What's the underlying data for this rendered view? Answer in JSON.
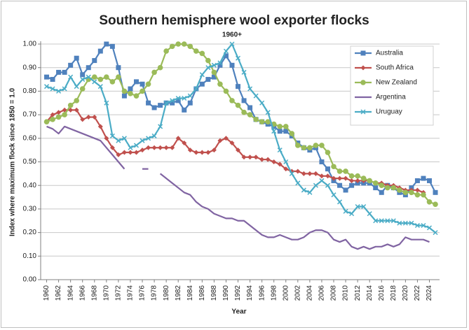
{
  "chart_data": {
    "type": "line",
    "title": "Southern hemisphere wool exporter flocks",
    "x_label": "Year",
    "y_label": "Index where maximum flock since 1850 = 1.0",
    "annotation": {
      "text": "1960+",
      "x": 1991
    },
    "x": [
      1960,
      1961,
      1962,
      1963,
      1964,
      1965,
      1966,
      1967,
      1968,
      1969,
      1970,
      1971,
      1972,
      1973,
      1974,
      1975,
      1976,
      1977,
      1978,
      1979,
      1980,
      1981,
      1982,
      1983,
      1984,
      1985,
      1986,
      1987,
      1988,
      1989,
      1990,
      1991,
      1992,
      1993,
      1994,
      1995,
      1996,
      1997,
      1998,
      1999,
      2000,
      2001,
      2002,
      2003,
      2004,
      2005,
      2006,
      2007,
      2008,
      2009,
      2010,
      2011,
      2012,
      2013,
      2014,
      2015,
      2016,
      2017,
      2018,
      2019,
      2020,
      2021,
      2022,
      2023,
      2024,
      2025
    ],
    "xlim": [
      1959,
      2025.7
    ],
    "xticks": [
      1960,
      1962,
      1964,
      1966,
      1968,
      1970,
      1972,
      1974,
      1976,
      1978,
      1980,
      1982,
      1984,
      1986,
      1988,
      1990,
      1992,
      1994,
      1996,
      1998,
      2000,
      2002,
      2004,
      2006,
      2008,
      2010,
      2012,
      2014,
      2016,
      2018,
      2020,
      2022,
      2024
    ],
    "ylim": [
      0,
      1
    ],
    "yticks": [
      {
        "value": 0,
        "label": "0.00"
      },
      {
        "value": 0.1,
        "label": "0.10"
      },
      {
        "value": 0.2,
        "label": "0.20"
      },
      {
        "value": 0.3,
        "label": "0.30"
      },
      {
        "value": 0.4,
        "label": "0.40"
      },
      {
        "value": 0.5,
        "label": "0.50"
      },
      {
        "value": 0.6,
        "label": "0.60"
      },
      {
        "value": 0.7,
        "label": "0.70"
      },
      {
        "value": 0.8,
        "label": "0.80"
      },
      {
        "value": 0.9,
        "label": "0.90"
      },
      {
        "value": 1,
        "label": "1.00"
      }
    ],
    "grid": true,
    "legend": "top-right",
    "series": [
      {
        "name": "Australia",
        "color": "#4f81bd",
        "marker": "square",
        "values": [
          0.86,
          0.85,
          0.88,
          0.88,
          0.91,
          0.94,
          0.87,
          0.9,
          0.93,
          0.97,
          1.0,
          0.99,
          0.9,
          0.78,
          0.81,
          0.84,
          0.83,
          0.75,
          0.73,
          0.74,
          0.75,
          0.75,
          0.76,
          0.72,
          0.75,
          0.81,
          0.83,
          0.85,
          0.86,
          0.91,
          0.95,
          0.91,
          0.82,
          0.76,
          0.73,
          0.68,
          0.67,
          0.66,
          0.65,
          0.63,
          0.63,
          0.61,
          0.58,
          0.56,
          0.55,
          0.56,
          0.5,
          0.47,
          0.42,
          0.4,
          0.38,
          0.4,
          0.41,
          0.41,
          0.41,
          0.39,
          0.37,
          0.4,
          0.39,
          0.37,
          0.36,
          0.39,
          0.42,
          0.43,
          0.42,
          0.37
        ]
      },
      {
        "name": "South Africa",
        "color": "#c0504d",
        "marker": "diamond",
        "values": [
          0.67,
          0.7,
          0.71,
          0.72,
          0.72,
          0.72,
          0.68,
          0.69,
          0.69,
          0.65,
          0.6,
          0.56,
          0.53,
          0.54,
          0.54,
          0.54,
          0.55,
          0.56,
          0.56,
          0.56,
          0.56,
          0.56,
          0.6,
          0.58,
          0.55,
          0.54,
          0.54,
          0.54,
          0.55,
          0.59,
          0.6,
          0.58,
          0.55,
          0.52,
          0.52,
          0.52,
          0.51,
          0.51,
          0.5,
          0.49,
          0.47,
          0.46,
          0.46,
          0.45,
          0.45,
          0.45,
          0.44,
          0.44,
          0.43,
          0.43,
          0.43,
          0.42,
          0.42,
          0.42,
          0.42,
          0.41,
          0.41,
          0.4,
          0.4,
          0.39,
          0.38,
          0.38,
          0.38,
          0.37,
          null,
          null
        ]
      },
      {
        "name": "New Zealand",
        "color": "#9bbb59",
        "marker": "circle",
        "values": [
          0.67,
          0.68,
          0.69,
          0.7,
          0.74,
          0.76,
          0.81,
          0.85,
          0.86,
          0.85,
          0.86,
          0.84,
          0.86,
          0.8,
          0.79,
          0.78,
          0.8,
          0.83,
          0.88,
          0.9,
          0.97,
          0.99,
          1.0,
          1.0,
          0.99,
          0.97,
          0.96,
          0.93,
          0.88,
          0.83,
          0.8,
          0.76,
          0.74,
          0.71,
          0.7,
          0.68,
          0.67,
          0.67,
          0.66,
          0.65,
          0.65,
          0.62,
          0.57,
          0.56,
          0.56,
          0.57,
          0.57,
          0.54,
          0.48,
          0.46,
          0.46,
          0.44,
          0.44,
          0.43,
          0.42,
          0.41,
          0.4,
          0.39,
          0.39,
          0.38,
          0.37,
          0.37,
          0.36,
          0.36,
          0.33,
          0.32
        ]
      },
      {
        "name": "Argentina",
        "color": "#8064a2",
        "marker": "none",
        "values": [
          0.65,
          0.64,
          0.62,
          0.65,
          0.64,
          0.63,
          0.62,
          0.61,
          0.6,
          0.59,
          0.56,
          0.53,
          0.5,
          0.47,
          null,
          null,
          0.47,
          0.47,
          null,
          0.45,
          0.43,
          0.41,
          0.39,
          0.37,
          0.36,
          0.33,
          0.31,
          0.3,
          0.28,
          0.27,
          0.26,
          0.26,
          0.25,
          0.25,
          0.23,
          0.21,
          0.19,
          0.18,
          0.18,
          0.19,
          0.18,
          0.17,
          0.17,
          0.18,
          0.2,
          0.21,
          0.21,
          0.2,
          0.17,
          0.16,
          0.17,
          0.14,
          0.13,
          0.14,
          0.13,
          0.14,
          0.14,
          0.15,
          0.14,
          0.15,
          0.18,
          0.17,
          0.17,
          0.17,
          0.16,
          null
        ]
      },
      {
        "name": "Uruguay",
        "color": "#4bacc6",
        "marker": "x",
        "values": [
          0.82,
          0.81,
          0.8,
          0.81,
          0.86,
          0.82,
          0.85,
          0.86,
          0.84,
          0.82,
          0.75,
          0.61,
          0.59,
          0.6,
          0.56,
          0.57,
          0.59,
          0.6,
          0.61,
          0.65,
          0.75,
          0.76,
          0.77,
          0.77,
          0.78,
          0.81,
          0.87,
          0.9,
          0.91,
          0.92,
          0.97,
          1.0,
          0.94,
          0.88,
          0.81,
          0.78,
          0.75,
          0.71,
          0.63,
          0.55,
          0.5,
          0.45,
          0.41,
          0.38,
          0.37,
          0.4,
          0.42,
          0.4,
          0.36,
          0.33,
          0.29,
          0.28,
          0.31,
          0.31,
          0.28,
          0.25,
          0.25,
          0.25,
          0.25,
          0.24,
          0.24,
          0.24,
          0.23,
          0.23,
          0.22,
          0.2
        ]
      }
    ]
  }
}
